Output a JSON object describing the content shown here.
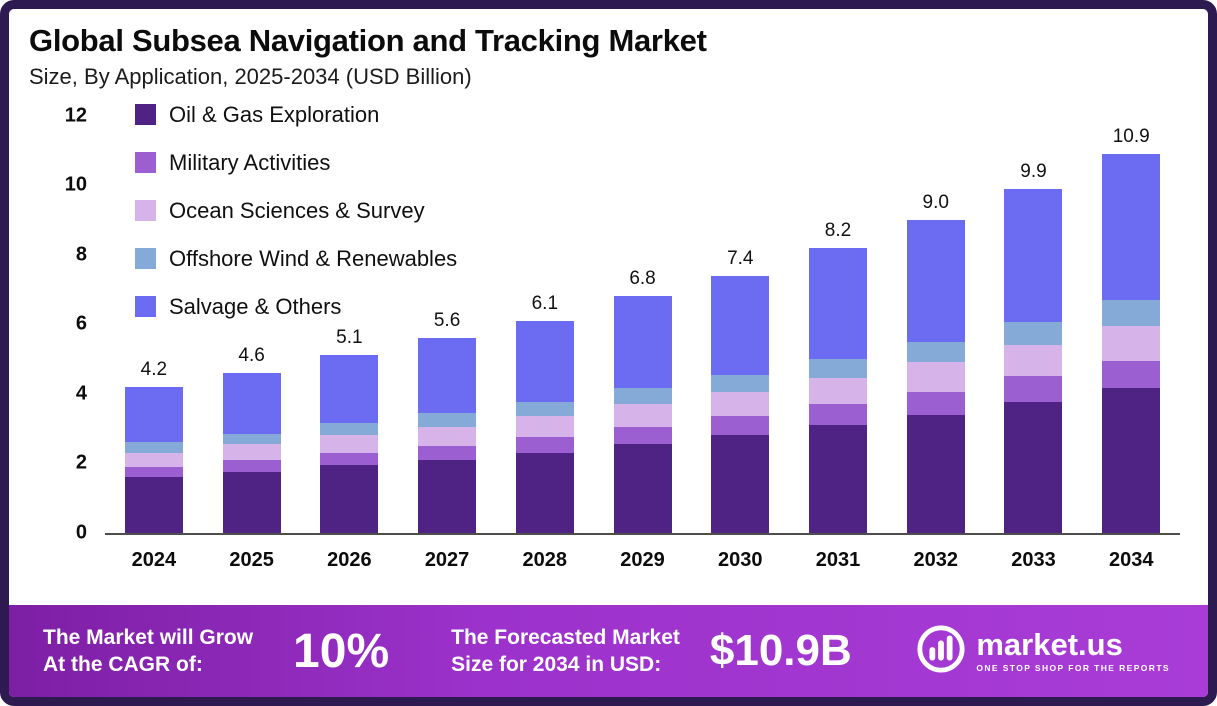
{
  "title": "Global Subsea Navigation and Tracking Market",
  "subtitle": "Size, By Application, 2025-2034 (USD Billion)",
  "chart_data": {
    "type": "bar",
    "stacked": true,
    "title": "Global Subsea Navigation and Tracking Market",
    "subtitle": "Size, By Application, 2025-2034 (USD Billion)",
    "xlabel": "",
    "ylabel": "USD Billion",
    "ylim": [
      0,
      12
    ],
    "yticks": [
      0,
      2,
      4,
      6,
      8,
      10,
      12
    ],
    "grid": false,
    "legend_position": "top-left",
    "categories": [
      "2024",
      "2025",
      "2026",
      "2027",
      "2028",
      "2029",
      "2030",
      "2031",
      "2032",
      "2033",
      "2034"
    ],
    "totals": [
      4.2,
      4.6,
      5.1,
      5.6,
      6.1,
      6.8,
      7.4,
      8.2,
      9.0,
      9.9,
      10.9
    ],
    "series": [
      {
        "name": "Oil & Gas Exploration",
        "color": "#4e2383",
        "values": [
          1.6,
          1.75,
          1.95,
          2.1,
          2.3,
          2.55,
          2.8,
          3.1,
          3.4,
          3.75,
          4.15
        ]
      },
      {
        "name": " Military Activities",
        "color": "#9b5fd2",
        "values": [
          0.3,
          0.35,
          0.35,
          0.4,
          0.45,
          0.5,
          0.55,
          0.6,
          0.65,
          0.75,
          0.8
        ]
      },
      {
        "name": "Ocean Sciences & Survey",
        "color": "#d6b4ea",
        "values": [
          0.4,
          0.45,
          0.5,
          0.55,
          0.6,
          0.65,
          0.7,
          0.75,
          0.85,
          0.9,
          1.0
        ]
      },
      {
        "name": "Offshore Wind & Renewables",
        "color": "#85aad7",
        "values": [
          0.3,
          0.3,
          0.35,
          0.4,
          0.4,
          0.45,
          0.5,
          0.55,
          0.6,
          0.65,
          0.75
        ]
      },
      {
        "name": "Salvage & Others",
        "color": "#6c6cf2",
        "values": [
          1.6,
          1.75,
          1.95,
          2.15,
          2.35,
          2.65,
          2.85,
          3.2,
          3.5,
          3.85,
          4.2
        ]
      }
    ]
  },
  "footer": {
    "cagr_label_line1": "The Market will Grow",
    "cagr_label_line2": "At the CAGR of:",
    "cagr_value": "10%",
    "forecast_label_line1": "The Forecasted Market",
    "forecast_label_line2": "Size for 2034 in USD:",
    "forecast_value": "$10.9B",
    "brand": "market.us",
    "brand_tagline": "ONE STOP SHOP FOR THE REPORTS"
  },
  "colors": {
    "frame_border": "#2d1a50",
    "footer_gradient_start": "#7d1fa5",
    "footer_gradient_end": "#a93cd6",
    "text": "#0c0c0c"
  }
}
